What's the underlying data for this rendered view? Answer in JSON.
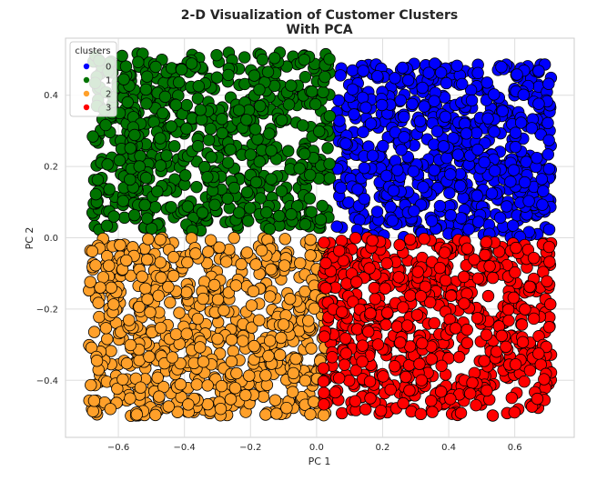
{
  "chart_data": {
    "type": "scatter",
    "title": "2-D Visualization of Customer Clusters",
    "subtitle": "With PCA",
    "xlabel": "PC 1",
    "ylabel": "PC 2",
    "xlim": [
      -0.76,
      0.78
    ],
    "ylim": [
      -0.56,
      0.56
    ],
    "xticks": [
      -0.6,
      -0.4,
      -0.2,
      0.0,
      0.2,
      0.4,
      0.6
    ],
    "xtick_labels": [
      "−0.6",
      "−0.4",
      "−0.2",
      "0.0",
      "0.2",
      "0.4",
      "0.6"
    ],
    "yticks": [
      -0.4,
      -0.2,
      0.0,
      0.2,
      0.4
    ],
    "ytick_labels": [
      "−0.4",
      "−0.2",
      "0.0",
      "0.2",
      "0.4"
    ],
    "grid": true,
    "legend": {
      "title": "clusters",
      "placement": "top-left",
      "entries": [
        "0",
        "1",
        "2",
        "3"
      ]
    },
    "series": [
      {
        "name": "0",
        "color": "#0000ff",
        "count": 700,
        "x_range": [
          0.06,
          0.71
        ],
        "y_range": [
          0.0,
          0.49
        ]
      },
      {
        "name": "1",
        "color": "#007300",
        "count": 700,
        "x_range": [
          -0.68,
          0.04
        ],
        "y_range": [
          0.02,
          0.52
        ]
      },
      {
        "name": "2",
        "color": "#ffa02a",
        "count": 700,
        "x_range": [
          -0.69,
          0.03
        ],
        "y_range": [
          -0.5,
          0.0
        ]
      },
      {
        "name": "3",
        "color": "#ff0000",
        "count": 700,
        "x_range": [
          0.02,
          0.71
        ],
        "y_range": [
          -0.5,
          0.0
        ]
      }
    ]
  }
}
